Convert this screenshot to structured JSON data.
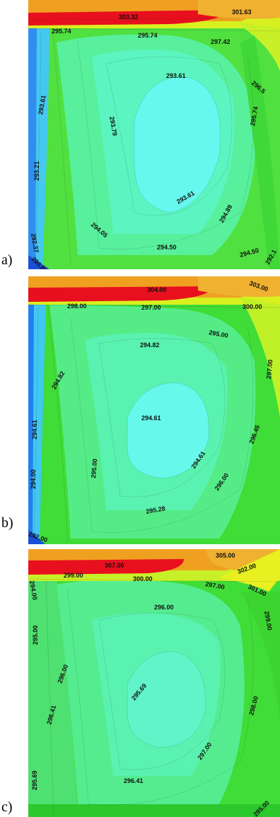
{
  "panels": [
    {
      "label": "a)",
      "contours": [
        "303.32",
        "301.63",
        "295.74",
        "295.74",
        "297.42",
        "296.5",
        "293.61",
        "293.61",
        "293.79",
        "295.74",
        "293.21",
        "293.61",
        "294.89",
        "292.37",
        "294.05",
        "294.50",
        "294.50",
        "290.88",
        "292.1"
      ]
    },
    {
      "label": "b)",
      "contours": [
        "304.00",
        "303.00",
        "298.00",
        "297.00",
        "300.00",
        "295.00",
        "294.82",
        "294.82",
        "297.00",
        "294.61",
        "294.61",
        "296.45",
        "294.61",
        "295.00",
        "294.00",
        "296.00",
        "295.28",
        "292.00"
      ]
    },
    {
      "label": "c)",
      "contours": [
        "305.00",
        "307.00",
        "299.00",
        "300.00",
        "302.00",
        "297.00",
        "301.00",
        "294.00",
        "296.00",
        "299.00",
        "295.00",
        "296.00",
        "295.69",
        "298.00",
        "296.41",
        "297.00",
        "295.69",
        "296.41",
        "295.00"
      ]
    }
  ],
  "colors": {
    "hot": "#e8101e",
    "warm": "#f0a020",
    "yellow": "#e8f020",
    "green": "#50e040",
    "mint": "#50f0a0",
    "cyan": "#50f8f0",
    "cold": "#2080f0"
  }
}
